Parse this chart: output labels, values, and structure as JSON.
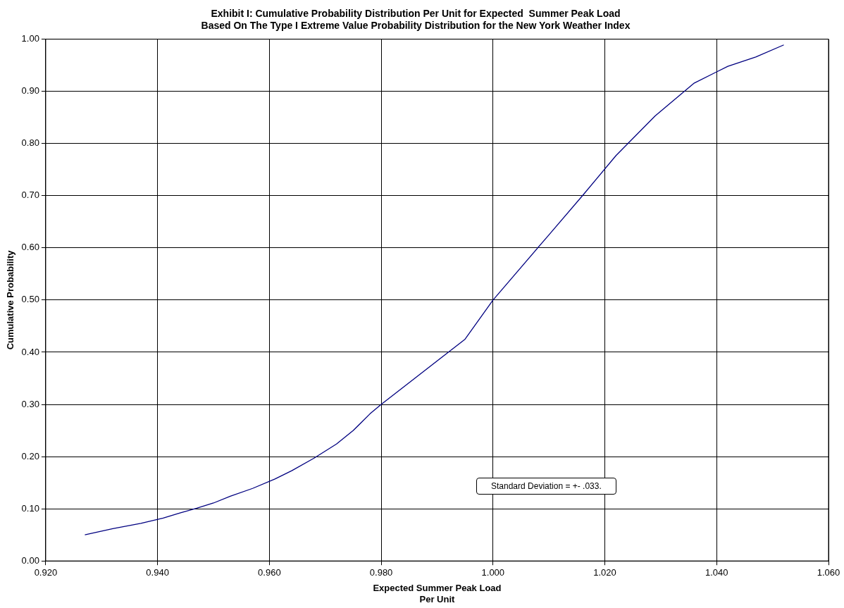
{
  "chart_data": {
    "type": "line",
    "title": [
      "Exhibit I: Cumulative Probability Distribution Per Unit for Expected  Summer Peak Load",
      "Based On The Type I Extreme Value Probability Distribution for the New York Weather Index"
    ],
    "xlabel": [
      "Expected Summer Peak Load",
      "Per Unit"
    ],
    "ylabel": "Cumulative Probability",
    "x": [
      0.927,
      0.932,
      0.937,
      0.941,
      0.944,
      0.947,
      0.95,
      0.953,
      0.957,
      0.961,
      0.964,
      0.968,
      0.972,
      0.975,
      0.978,
      0.98,
      0.986,
      0.992,
      0.995,
      1.0,
      1.01,
      1.016,
      1.022,
      1.029,
      1.036,
      1.042,
      1.047,
      1.052
    ],
    "series": [
      {
        "color": "#000080",
        "values": [
          0.05,
          0.062,
          0.072,
          0.082,
          0.092,
          0.101,
          0.111,
          0.124,
          0.139,
          0.157,
          0.173,
          0.197,
          0.224,
          0.25,
          0.282,
          0.3,
          0.35,
          0.4,
          0.425,
          0.5,
          0.625,
          0.7,
          0.777,
          0.853,
          0.916,
          0.948,
          0.966,
          0.989
        ]
      }
    ],
    "xlim": [
      0.92,
      1.06
    ],
    "xticks": [
      {
        "value": 0.92,
        "label": "0.920"
      },
      {
        "value": 0.94,
        "label": "0.940"
      },
      {
        "value": 0.96,
        "label": "0.960"
      },
      {
        "value": 0.98,
        "label": "0.980"
      },
      {
        "value": 1.0,
        "label": "1.000"
      },
      {
        "value": 1.02,
        "label": "1.020"
      },
      {
        "value": 1.04,
        "label": "1.040"
      },
      {
        "value": 1.06,
        "label": "1.060"
      }
    ],
    "ylim": [
      0,
      1
    ],
    "yticks": [
      {
        "value": 0,
        "label": "0.00"
      },
      {
        "value": 0.1,
        "label": "0.10"
      },
      {
        "value": 0.2,
        "label": "0.20"
      },
      {
        "value": 0.3,
        "label": "0.30"
      },
      {
        "value": 0.4,
        "label": "0.40"
      },
      {
        "value": 0.5,
        "label": "0.50"
      },
      {
        "value": 0.6,
        "label": "0.60"
      },
      {
        "value": 0.7,
        "label": "0.70"
      },
      {
        "value": 0.8,
        "label": "0.80"
      },
      {
        "value": 0.9,
        "label": "0.90"
      },
      {
        "value": 1,
        "label": "1.00"
      }
    ],
    "grid": true,
    "legend": false,
    "marker": "none",
    "line_style": "solid",
    "annotations": [
      "Standard Deviation = +- .033."
    ]
  }
}
